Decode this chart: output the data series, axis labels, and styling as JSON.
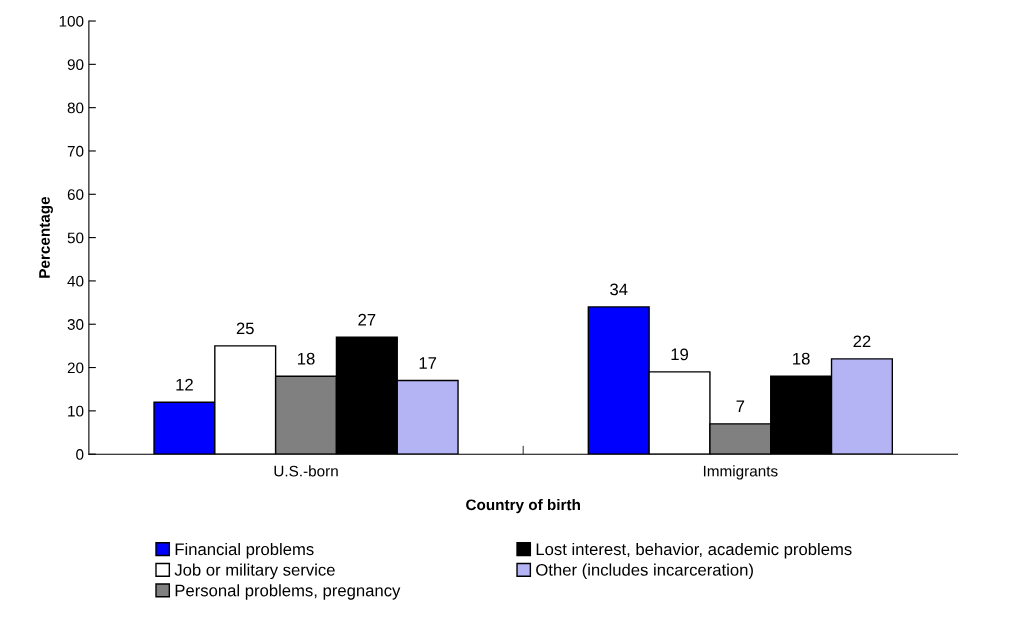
{
  "chart_data": {
    "type": "bar",
    "xlabel": "Country of birth",
    "ylabel": "Percentage",
    "categories": [
      "U.S.-born",
      "Immigrants"
    ],
    "series": [
      {
        "name": "Financial problems",
        "color": "#0000ff",
        "values": [
          12,
          34
        ]
      },
      {
        "name": "Job or military service",
        "color": "#ffffff",
        "values": [
          25,
          19
        ]
      },
      {
        "name": "Personal problems, pregnancy",
        "color": "#808080",
        "values": [
          18,
          7
        ]
      },
      {
        "name": "Lost interest, behavior, academic problems",
        "color": "#000000",
        "values": [
          27,
          18
        ]
      },
      {
        "name": "Other (includes incarceration)",
        "color": "#b4b4f4",
        "values": [
          17,
          22
        ]
      }
    ],
    "ylim": [
      0,
      100
    ],
    "yticks": [
      0,
      10,
      20,
      30,
      40,
      50,
      60,
      70,
      80,
      90,
      100
    ],
    "data_labels": true,
    "grid": false,
    "legend": "bottom"
  }
}
